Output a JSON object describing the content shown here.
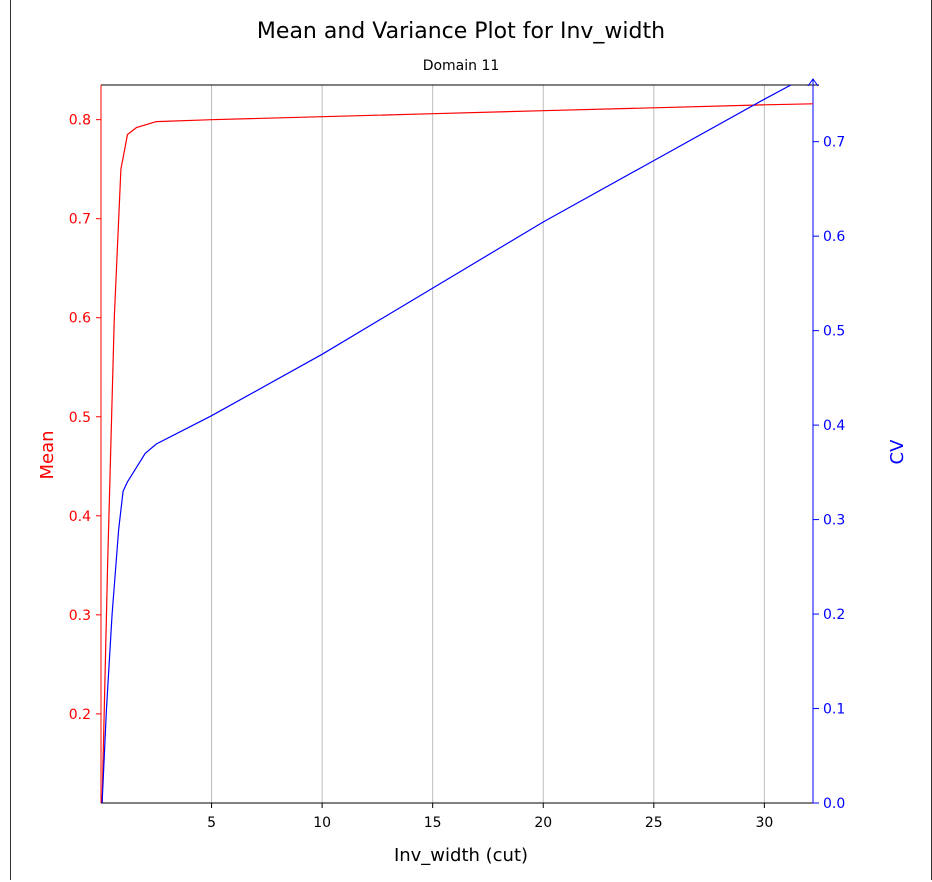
{
  "chart_data": {
    "type": "line",
    "title": "Mean and Variance Plot for Inv_width",
    "subtitle": "Domain 11",
    "xlabel": "Inv_width (cut)",
    "xlim": [
      0,
      32.2
    ],
    "x_ticks": [
      5,
      10,
      15,
      20,
      25,
      30
    ],
    "grid": true,
    "y_left": {
      "label": "Mean",
      "color": "#ff0000",
      "lim": [
        0.11,
        0.835
      ],
      "ticks": [
        0.2,
        0.3,
        0.4,
        0.5,
        0.6,
        0.7,
        0.8
      ]
    },
    "y_right": {
      "label": "CV",
      "color": "#0000ff",
      "lim": [
        0.0,
        0.76
      ],
      "ticks": [
        0.0,
        0.1,
        0.2,
        0.3,
        0.4,
        0.5,
        0.6,
        0.7
      ]
    },
    "series": [
      {
        "name": "Mean",
        "axis": "left",
        "color": "#ff0000",
        "x": [
          0.05,
          0.3,
          0.6,
          0.9,
          1.2,
          1.6,
          2.5,
          5,
          10,
          15,
          20,
          25,
          30,
          32.2
        ],
        "y": [
          0.11,
          0.35,
          0.6,
          0.75,
          0.785,
          0.792,
          0.798,
          0.8,
          0.803,
          0.806,
          0.809,
          0.812,
          0.815,
          0.816
        ]
      },
      {
        "name": "CV",
        "axis": "right",
        "color": "#0000ff",
        "x": [
          0.05,
          0.25,
          0.5,
          0.8,
          1.0,
          1.2,
          1.6,
          2.0,
          2.5,
          5,
          10,
          15,
          20,
          25,
          30,
          31.2
        ],
        "y": [
          0.0,
          0.1,
          0.2,
          0.29,
          0.33,
          0.34,
          0.355,
          0.37,
          0.38,
          0.41,
          0.475,
          0.545,
          0.615,
          0.68,
          0.745,
          0.76
        ]
      }
    ]
  }
}
